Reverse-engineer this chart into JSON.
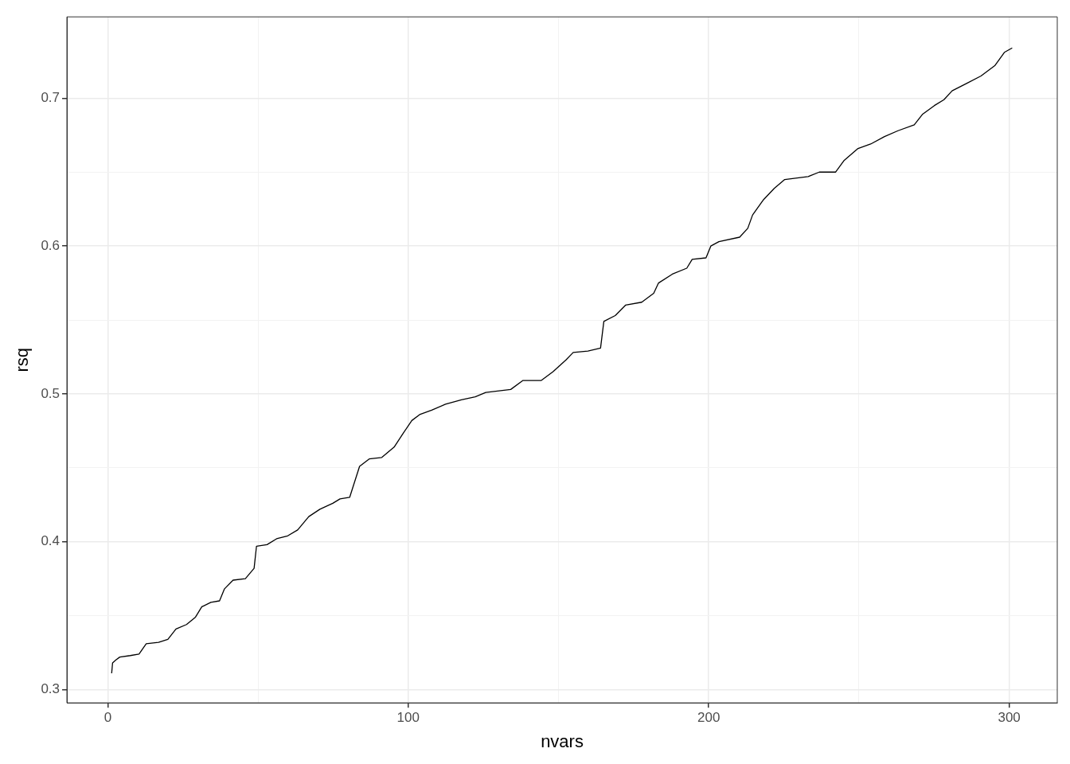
{
  "chart_data": {
    "type": "line",
    "xlabel": "nvars",
    "ylabel": "rsq",
    "xlim": [
      -13.6,
      316
    ],
    "ylim": [
      0.291,
      0.755
    ],
    "xticks": [
      0,
      {
        "value": 50,
        "label": null
      },
      100,
      {
        "value": 150,
        "label": null
      },
      200,
      {
        "value": 250,
        "label": null
      },
      300
    ],
    "yticks": [
      0.3,
      {
        "value": 0.35,
        "label": null
      },
      0.4,
      {
        "value": 0.45,
        "label": null
      },
      0.5,
      {
        "value": 0.55,
        "label": null
      },
      0.6,
      {
        "value": 0.65,
        "label": null
      },
      0.7
    ],
    "grid": true,
    "marker": "none",
    "line_style": "solid",
    "series": [
      {
        "color": "#000000",
        "x": [
          1.3,
          1.6,
          2.7,
          4,
          7.5,
          10.4,
          12.8,
          16.9,
          20,
          22.7,
          26.2,
          29.2,
          31.3,
          34.3,
          37.2,
          38.8,
          41.7,
          45.8,
          48.7,
          49.5,
          53,
          56.2,
          59.9,
          63.2,
          66.9,
          70.6,
          74.9,
          77.3,
          80.5,
          83.8,
          87,
          91.2,
          95.3,
          98.2,
          101.2,
          103.8,
          107.8,
          112.4,
          117.7,
          122.3,
          125.8,
          134.1,
          138.1,
          144.2,
          148.2,
          152.5,
          154.9,
          159.8,
          164,
          165.1,
          168.9,
          172.3,
          177.7,
          181.7,
          183.3,
          187.9,
          192.7,
          194.5,
          199.1,
          200.7,
          203.4,
          210.3,
          213,
          214.6,
          218.1,
          221.8,
          225.3,
          233.1,
          236.8,
          242.2,
          245.1,
          249.7,
          253.9,
          258.5,
          263,
          268.4,
          271.1,
          275.1,
          278.3,
          281,
          285.8,
          290.6,
          295.2,
          298.4,
          301
        ],
        "values": [
          0.311,
          0.318,
          0.32,
          0.322,
          0.323,
          0.324,
          0.331,
          0.332,
          0.334,
          0.341,
          0.344,
          0.349,
          0.356,
          0.359,
          0.36,
          0.368,
          0.374,
          0.375,
          0.382,
          0.397,
          0.398,
          0.402,
          0.404,
          0.408,
          0.417,
          0.422,
          0.426,
          0.429,
          0.43,
          0.451,
          0.456,
          0.457,
          0.464,
          0.473,
          0.482,
          0.486,
          0.489,
          0.493,
          0.496,
          0.498,
          0.501,
          0.503,
          0.509,
          0.509,
          0.515,
          0.523,
          0.528,
          0.529,
          0.531,
          0.549,
          0.553,
          0.56,
          0.562,
          0.568,
          0.575,
          0.581,
          0.585,
          0.591,
          0.592,
          0.6,
          0.603,
          0.606,
          0.612,
          0.621,
          0.631,
          0.639,
          0.645,
          0.647,
          0.65,
          0.65,
          0.658,
          0.666,
          0.669,
          0.674,
          0.678,
          0.682,
          0.689,
          0.695,
          0.699,
          0.705,
          0.71,
          0.715,
          0.722,
          0.731,
          0.734
        ]
      }
    ]
  }
}
